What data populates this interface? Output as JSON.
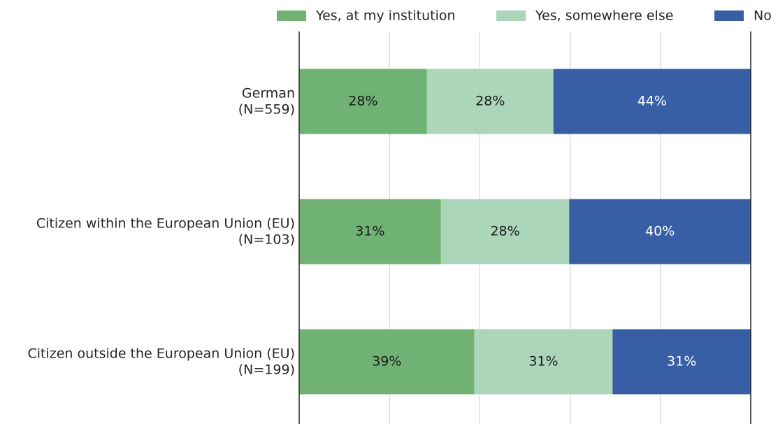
{
  "chart_data": {
    "type": "stacked-bar-horizontal",
    "categories": [
      [
        "German",
        "(N=559)"
      ],
      [
        "Citizen within the European Union (EU)",
        "(N=103)"
      ],
      [
        "Citizen outside the European Union (EU)",
        "(N=199)"
      ]
    ],
    "series": [
      {
        "name": "Yes, at my institution",
        "color": "#70b274",
        "label_color": "#1a1a1a",
        "values": [
          28.3,
          31.4,
          38.8
        ],
        "value_labels": [
          "28%",
          "31%",
          "39%"
        ]
      },
      {
        "name": "Yes, somewhere else",
        "color": "#acd6b9",
        "label_color": "#1a1a1a",
        "values": [
          28.0,
          28.4,
          30.6
        ],
        "value_labels": [
          "28%",
          "28%",
          "31%"
        ]
      },
      {
        "name": "No",
        "color": "#385fa6",
        "label_color": "#ffffff",
        "values": [
          43.7,
          40.2,
          30.6
        ],
        "value_labels": [
          "44%",
          "40%",
          "31%"
        ]
      }
    ],
    "xlim": [
      0,
      100
    ],
    "xticks": [
      20,
      40,
      60,
      80
    ],
    "grid": true
  }
}
